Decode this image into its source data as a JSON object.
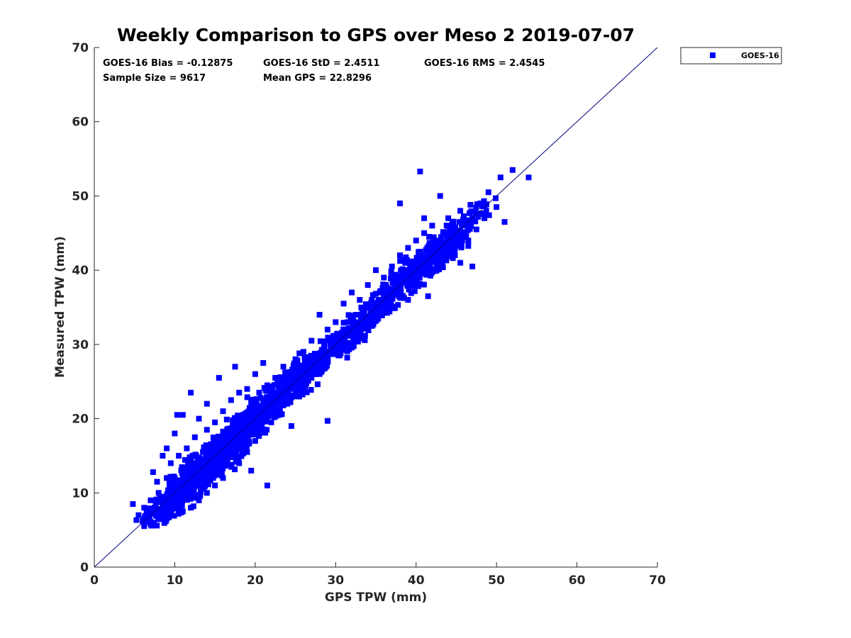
{
  "chart_data": {
    "type": "scatter",
    "title": "Weekly Comparison to GPS over Meso 2 2019-07-07",
    "xlabel": "GPS TPW (mm)",
    "ylabel": "Measured TPW (mm)",
    "xlim": [
      0,
      70
    ],
    "ylim": [
      0,
      70
    ],
    "xticks": [
      "0",
      "10",
      "20",
      "30",
      "40",
      "50",
      "60",
      "70"
    ],
    "yticks": [
      "0",
      "10",
      "20",
      "30",
      "40",
      "50",
      "60",
      "70"
    ],
    "grid": false,
    "legend_position": "outside top-right",
    "reference_line": {
      "x": [
        0,
        70
      ],
      "y": [
        0,
        70
      ],
      "color": "#000080"
    },
    "stats": [
      "GOES-16 Bias = -0.12875",
      "GOES-16 StD = 2.4511",
      "GOES-16 RMS = 2.4545",
      "Sample Size = 9617",
      "Mean GPS = 22.8296"
    ],
    "series": [
      {
        "name": "GOES-16",
        "color": "#0000ff",
        "marker": "square",
        "points": [
          [
            4.8,
            8.5
          ],
          [
            5.5,
            7.0
          ],
          [
            6.0,
            6.2
          ],
          [
            6.2,
            8.0
          ],
          [
            6.5,
            7.5
          ],
          [
            7.0,
            5.8
          ],
          [
            7.0,
            9.0
          ],
          [
            7.3,
            12.8
          ],
          [
            7.5,
            8.0
          ],
          [
            7.8,
            11.5
          ],
          [
            8.0,
            7.0
          ],
          [
            8.0,
            10.0
          ],
          [
            8.5,
            15.0
          ],
          [
            8.5,
            9.5
          ],
          [
            9.0,
            6.5
          ],
          [
            9.0,
            12.0
          ],
          [
            9.0,
            16.0
          ],
          [
            9.5,
            10.5
          ],
          [
            9.5,
            14.0
          ],
          [
            10.0,
            8.0
          ],
          [
            10.0,
            12.0
          ],
          [
            10.0,
            18.0
          ],
          [
            10.3,
            20.5
          ],
          [
            10.5,
            10.0
          ],
          [
            10.5,
            15.0
          ],
          [
            11.0,
            7.5
          ],
          [
            11.0,
            12.5
          ],
          [
            11.0,
            20.5
          ],
          [
            11.5,
            9.5
          ],
          [
            11.5,
            16.0
          ],
          [
            12.0,
            8.0
          ],
          [
            12.0,
            11.0
          ],
          [
            12.0,
            14.5
          ],
          [
            12.0,
            23.5
          ],
          [
            12.5,
            12.5
          ],
          [
            12.5,
            17.5
          ],
          [
            13.0,
            9.0
          ],
          [
            13.0,
            13.5
          ],
          [
            13.0,
            20.0
          ],
          [
            13.5,
            11.0
          ],
          [
            13.5,
            15.5
          ],
          [
            14.0,
            10.0
          ],
          [
            14.0,
            14.0
          ],
          [
            14.0,
            18.5
          ],
          [
            14.0,
            22.0
          ],
          [
            14.5,
            12.5
          ],
          [
            14.5,
            16.5
          ],
          [
            15.0,
            11.0
          ],
          [
            15.0,
            15.0
          ],
          [
            15.0,
            19.5
          ],
          [
            15.5,
            13.0
          ],
          [
            15.5,
            17.0
          ],
          [
            15.5,
            25.5
          ],
          [
            16.0,
            12.0
          ],
          [
            16.0,
            16.0
          ],
          [
            16.0,
            21.0
          ],
          [
            16.5,
            14.5
          ],
          [
            16.5,
            18.5
          ],
          [
            17.0,
            13.5
          ],
          [
            17.0,
            17.5
          ],
          [
            17.0,
            22.5
          ],
          [
            17.5,
            15.5
          ],
          [
            17.5,
            19.5
          ],
          [
            17.5,
            27.0
          ],
          [
            18.0,
            14.0
          ],
          [
            18.0,
            18.0
          ],
          [
            18.0,
            23.5
          ],
          [
            18.5,
            16.5
          ],
          [
            18.5,
            20.5
          ],
          [
            19.0,
            15.5
          ],
          [
            19.0,
            19.5
          ],
          [
            19.0,
            24.0
          ],
          [
            19.5,
            18.0
          ],
          [
            19.5,
            22.0
          ],
          [
            19.5,
            13.0
          ],
          [
            20.0,
            17.0
          ],
          [
            20.0,
            21.0
          ],
          [
            20.0,
            26.0
          ],
          [
            20.5,
            19.5
          ],
          [
            20.5,
            23.5
          ],
          [
            21.0,
            18.5
          ],
          [
            21.0,
            22.5
          ],
          [
            21.0,
            27.5
          ],
          [
            21.5,
            11.0
          ],
          [
            21.5,
            20.5
          ],
          [
            21.5,
            24.5
          ],
          [
            22.0,
            19.5
          ],
          [
            22.0,
            23.5
          ],
          [
            22.5,
            21.5
          ],
          [
            22.5,
            25.5
          ],
          [
            23.0,
            20.5
          ],
          [
            23.0,
            24.5
          ],
          [
            23.5,
            22.5
          ],
          [
            23.5,
            27.0
          ],
          [
            24.0,
            22.0
          ],
          [
            24.0,
            26.0
          ],
          [
            24.5,
            19.0
          ],
          [
            24.5,
            24.0
          ],
          [
            25.0,
            23.5
          ],
          [
            25.0,
            28.0
          ],
          [
            25.5,
            25.0
          ],
          [
            26.0,
            24.0
          ],
          [
            26.0,
            29.0
          ],
          [
            26.5,
            26.5
          ],
          [
            27.0,
            25.5
          ],
          [
            27.0,
            30.5
          ],
          [
            27.5,
            28.0
          ],
          [
            28.0,
            26.0
          ],
          [
            28.0,
            34.0
          ],
          [
            28.5,
            29.0
          ],
          [
            29.0,
            19.7
          ],
          [
            29.0,
            28.0
          ],
          [
            29.0,
            32.0
          ],
          [
            29.5,
            30.5
          ],
          [
            30.0,
            29.0
          ],
          [
            30.0,
            33.0
          ],
          [
            30.5,
            31.0
          ],
          [
            31.0,
            30.0
          ],
          [
            31.0,
            35.5
          ],
          [
            31.5,
            33.0
          ],
          [
            32.0,
            31.5
          ],
          [
            32.0,
            37.0
          ],
          [
            32.5,
            34.0
          ],
          [
            33.0,
            32.0
          ],
          [
            33.0,
            36.0
          ],
          [
            33.5,
            34.5
          ],
          [
            34.0,
            33.5
          ],
          [
            34.0,
            38.0
          ],
          [
            34.5,
            36.0
          ],
          [
            35.0,
            34.0
          ],
          [
            35.0,
            40.0
          ],
          [
            35.5,
            37.0
          ],
          [
            36.0,
            35.5
          ],
          [
            36.0,
            39.0
          ],
          [
            36.5,
            37.5
          ],
          [
            37.0,
            36.5
          ],
          [
            37.0,
            40.5
          ],
          [
            37.5,
            38.5
          ],
          [
            38.0,
            37.0
          ],
          [
            38.0,
            42.0
          ],
          [
            38.5,
            40.0
          ],
          [
            39.0,
            38.5
          ],
          [
            39.0,
            43.0
          ],
          [
            39.5,
            41.0
          ],
          [
            40.0,
            40.0
          ],
          [
            40.0,
            44.0
          ],
          [
            40.5,
            42.5
          ],
          [
            41.0,
            41.0
          ],
          [
            41.0,
            45.0
          ],
          [
            41.5,
            43.0
          ],
          [
            42.0,
            41.5
          ],
          [
            42.0,
            46.0
          ],
          [
            42.5,
            44.0
          ],
          [
            43.0,
            42.5
          ],
          [
            43.0,
            50.0
          ],
          [
            43.5,
            45.0
          ],
          [
            44.0,
            44.0
          ],
          [
            44.5,
            46.5
          ],
          [
            45.0,
            45.0
          ],
          [
            45.5,
            48.0
          ],
          [
            46.0,
            46.5
          ],
          [
            46.5,
            44.0
          ],
          [
            47.0,
            47.0
          ],
          [
            47.5,
            45.5
          ],
          [
            48.0,
            49.0
          ],
          [
            48.5,
            47.0
          ],
          [
            49.0,
            50.5
          ],
          [
            50.0,
            48.5
          ],
          [
            50.5,
            52.5
          ],
          [
            51.0,
            46.5
          ],
          [
            52.0,
            53.5
          ],
          [
            54.0,
            52.5
          ],
          [
            40.5,
            53.3
          ],
          [
            38.0,
            49.0
          ],
          [
            41.5,
            36.5
          ],
          [
            47.0,
            40.5
          ],
          [
            45.5,
            41.0
          ],
          [
            39.0,
            36.0
          ],
          [
            41.0,
            47.0
          ],
          [
            44.0,
            47.0
          ]
        ]
      }
    ]
  }
}
